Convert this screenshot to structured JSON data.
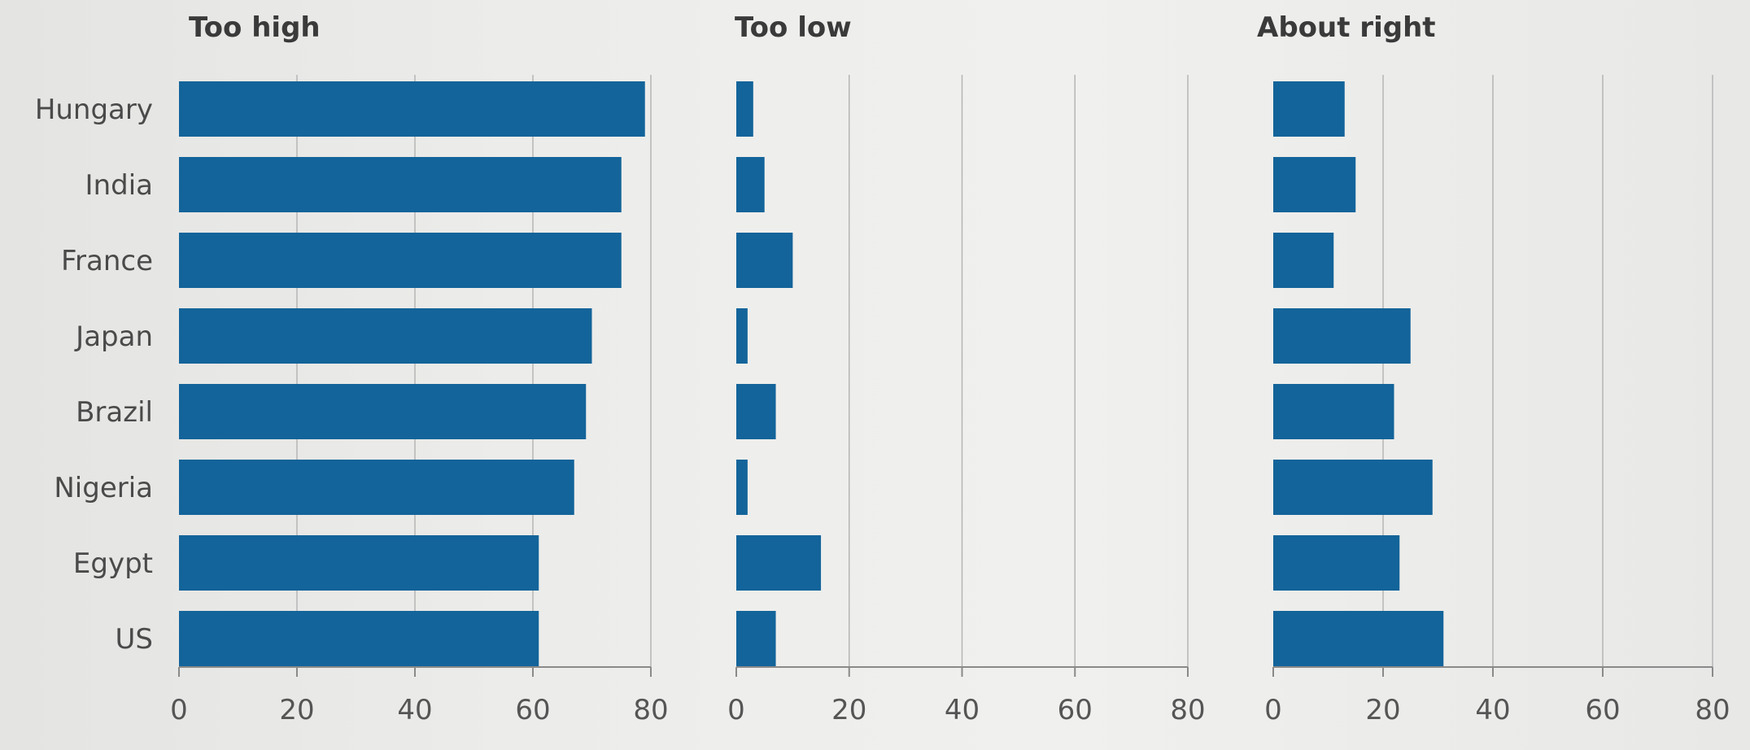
{
  "chart_data": {
    "type": "bar",
    "orientation": "horizontal",
    "categories": [
      "Hungary",
      "India",
      "France",
      "Japan",
      "Brazil",
      "Nigeria",
      "Egypt",
      "US"
    ],
    "xlim": [
      0,
      80
    ],
    "xticks": [
      "0",
      "20",
      "40",
      "60",
      "80"
    ],
    "grid": true,
    "bar_color": "#13649a",
    "panels": [
      {
        "title": "Too high",
        "values": [
          79,
          75,
          75,
          70,
          69,
          67,
          61,
          61
        ]
      },
      {
        "title": "Too low",
        "values": [
          3,
          5,
          10,
          2,
          7,
          2,
          15,
          7
        ]
      },
      {
        "title": "About right",
        "values": [
          13,
          15,
          11,
          25,
          22,
          29,
          23,
          31
        ]
      }
    ]
  }
}
